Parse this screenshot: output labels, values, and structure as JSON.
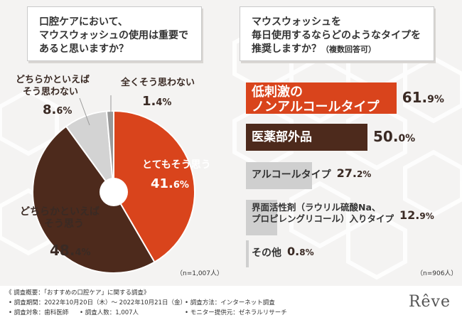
{
  "left_question": {
    "line1": "口腔ケアにおいて、",
    "line2": "マウスウォッシュの使用は重要で",
    "line3": "あると思いますか？"
  },
  "right_question": {
    "line1": "マウスウォッシュを",
    "line2": "毎日使用するならどのようなタイプを",
    "line3": "推奨しますか？",
    "line3_sub": "（複数回答可）"
  },
  "chart_data": [
    {
      "type": "pie",
      "slices": [
        {
          "label": "とてもそう思う",
          "value": 41.6,
          "value_int": "41.",
          "value_dec": "6%",
          "color": "#d9441c"
        },
        {
          "label_line1": "どちらかといえば",
          "label_line2": "そう思う",
          "value": 48.4,
          "value_int": "48.",
          "value_dec": "4%",
          "color": "#4d2a1c"
        },
        {
          "label_line1": "どちらかといえば",
          "label_line2": "そう思わない",
          "value": 8.6,
          "value_int": "8.",
          "value_dec": "6%",
          "color": "#d3d3d3"
        },
        {
          "label": "全くそう思わない",
          "value": 1.4,
          "value_int": "1.",
          "value_dec": "4%",
          "color": "#9a9a9a"
        }
      ],
      "n": "（n=1,007人）"
    },
    {
      "type": "bar",
      "orientation": "horizontal",
      "categories": [
        "低刺激のノンアルコールタイプ",
        "医薬部外品",
        "アルコールタイプ",
        "界面活性剤（ラウリル硫酸Na、プロピレングリコール）入りタイプ",
        "その他"
      ],
      "values": [
        61.9,
        50.0,
        27.2,
        12.9,
        0.8
      ],
      "bars": [
        {
          "text_line1": "低刺激の",
          "text_line2": "ノンアルコールタイプ",
          "value": 61.9,
          "val_int": "61.",
          "val_dec": "9%",
          "color": "#d9441c",
          "text_color": "#ffffff"
        },
        {
          "text_line1": "医薬部外品",
          "value": 50.0,
          "val_int": "50.",
          "val_dec": "0%",
          "color": "#4d2a1c",
          "text_color": "#ffffff"
        },
        {
          "text_line1": "アルコールタイプ",
          "value": 27.2,
          "val_int": "27.",
          "val_dec": "2%",
          "color": "#cfcfcf",
          "text_color": "#333333"
        },
        {
          "text_line1": "界面活性剤（ラウリル硫酸Na、",
          "text_line2": "プロピレングリコール）入りタイプ",
          "value": 12.9,
          "val_int": "12.",
          "val_dec": "9%",
          "color": "#cfcfcf",
          "text_color": "#333333"
        },
        {
          "text_line1": "その他",
          "value": 0.8,
          "val_int": "0.",
          "val_dec": "8%",
          "color": "#cfcfcf",
          "text_color": "#333333"
        }
      ],
      "n": "（n=906人）"
    }
  ],
  "footer": {
    "title": "《 調査概要：「おすすめの口腔ケア」に関する調査》",
    "period": "• 調査期間：2022年10月20日（木）～ 2022年10月21日（金）",
    "method": "• 調査方法：インターネット調査",
    "target": "• 調査対象：歯科医師",
    "people": "• 調査人数：1,007人",
    "monitor": "• モニター提供元：ゼネラルリサーチ",
    "brand": "Rêve"
  }
}
